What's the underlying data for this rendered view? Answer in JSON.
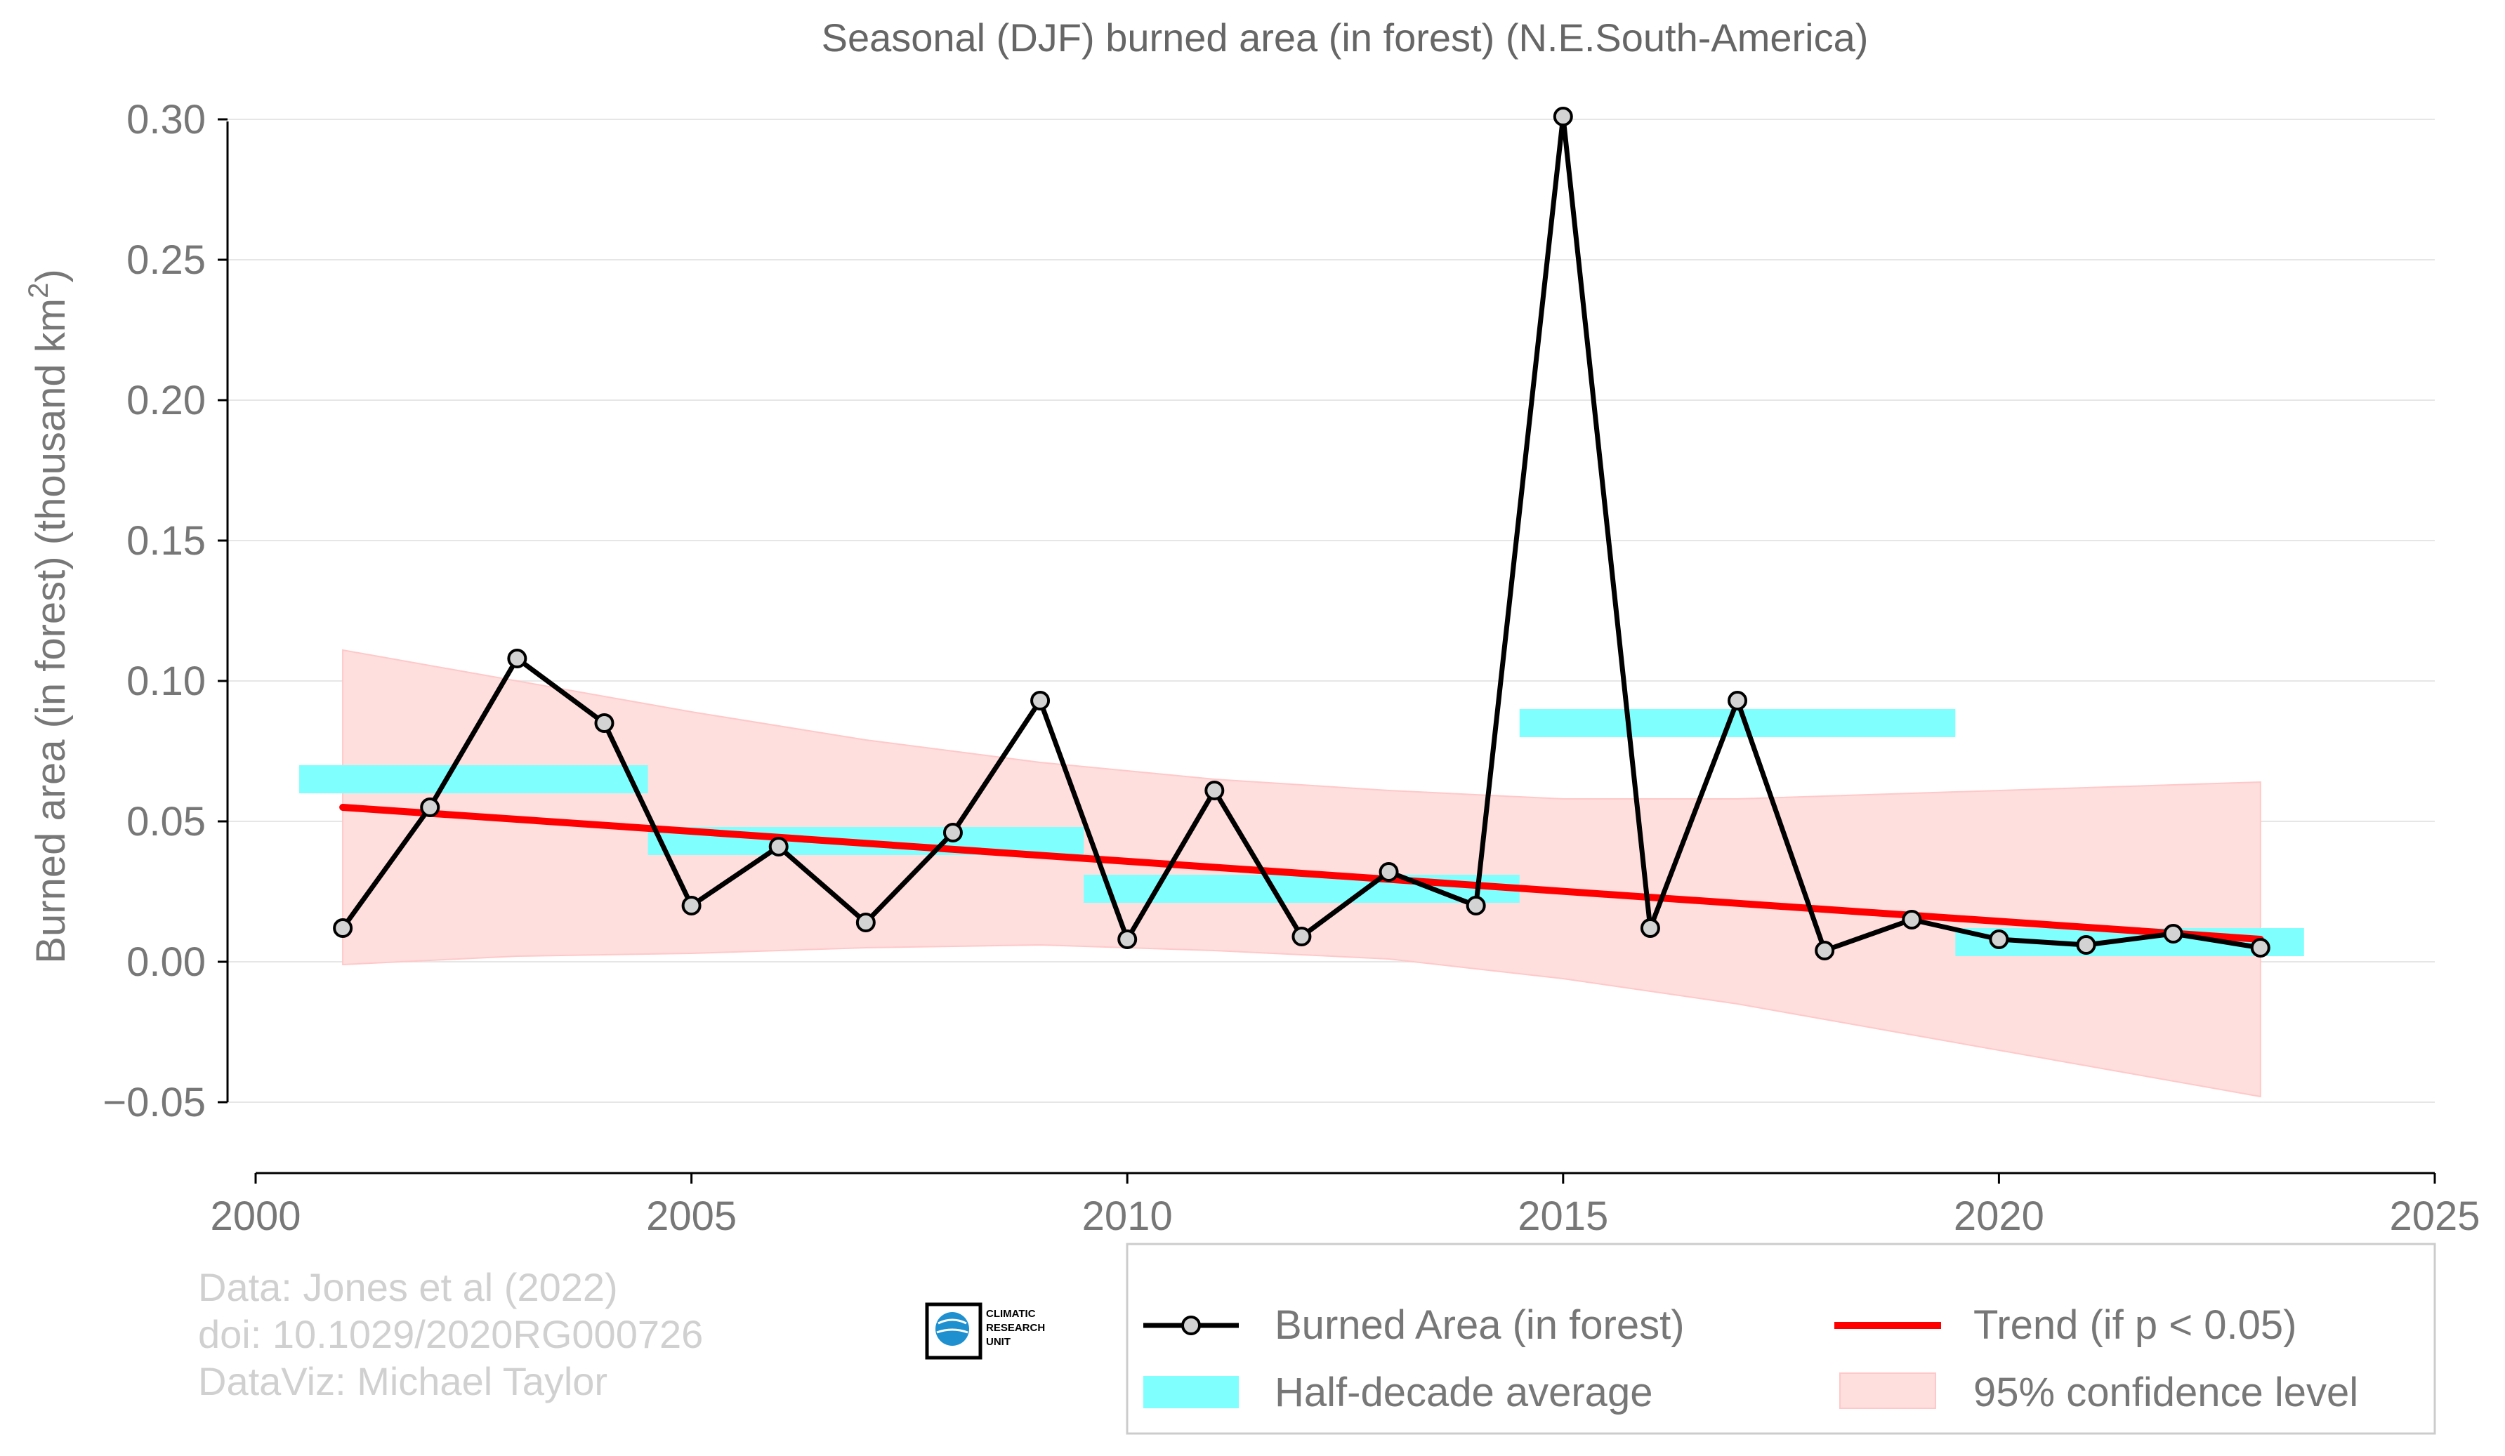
{
  "chart_data": {
    "type": "line",
    "title": "Seasonal (DJF) burned area (in forest) (N.E.South-America)",
    "ylabel_main": "Burned area (in forest) (thousand km",
    "ylabel_sup": "2",
    "ylabel_close": ")",
    "xlabel": "",
    "xlim": [
      2000,
      2025
    ],
    "ylim": [
      -0.075,
      0.3
    ],
    "x_ticks": [
      2000,
      2005,
      2010,
      2015,
      2020,
      2025
    ],
    "y_ticks": [
      -0.05,
      0.0,
      0.05,
      0.1,
      0.15,
      0.2,
      0.25,
      0.3
    ],
    "y_tick_labels": [
      "−0.05",
      "0.00",
      "0.05",
      "0.10",
      "0.15",
      "0.20",
      "0.25",
      "0.30"
    ],
    "grid": "horizontal",
    "legend_position": "bottom-right",
    "series": [
      {
        "name": "Burned Area (in forest)",
        "color": "#000000",
        "marker_fill": "#d3d3d3",
        "x": [
          2001,
          2002,
          2003,
          2004,
          2005,
          2006,
          2007,
          2008,
          2009,
          2010,
          2011,
          2012,
          2013,
          2014,
          2015,
          2016,
          2017,
          2018,
          2019,
          2020,
          2021,
          2022,
          2023
        ],
        "y": [
          0.012,
          0.055,
          0.108,
          0.085,
          0.02,
          0.041,
          0.014,
          0.046,
          0.093,
          0.008,
          0.061,
          0.009,
          0.032,
          0.02,
          0.301,
          0.012,
          0.093,
          0.004,
          0.015,
          0.008,
          0.006,
          0.01,
          0.005
        ]
      }
    ],
    "half_decade_average": {
      "name": "Half-decade average",
      "color": "#80ffff",
      "bars": [
        {
          "x_start": 2000.5,
          "x_end": 2004.5,
          "y_low": 0.06,
          "y_high": 0.07
        },
        {
          "x_start": 2004.5,
          "x_end": 2009.5,
          "y_low": 0.038,
          "y_high": 0.048
        },
        {
          "x_start": 2009.5,
          "x_end": 2014.5,
          "y_low": 0.021,
          "y_high": 0.031
        },
        {
          "x_start": 2014.5,
          "x_end": 2019.5,
          "y_low": 0.08,
          "y_high": 0.09
        },
        {
          "x_start": 2019.5,
          "x_end": 2023.5,
          "y_low": 0.002,
          "y_high": 0.012
        }
      ]
    },
    "trend": {
      "name": "Trend (if p < 0.05)",
      "color": "#ff0000",
      "x": [
        2001,
        2023
      ],
      "y": [
        0.055,
        0.008
      ]
    },
    "confidence_band": {
      "name": "95% confidence level",
      "color": "#ffdede",
      "x": [
        2001,
        2003,
        2005,
        2007,
        2009,
        2011,
        2013,
        2015,
        2017,
        2019,
        2021,
        2023
      ],
      "upper": [
        0.111,
        0.1,
        0.089,
        0.079,
        0.071,
        0.065,
        0.061,
        0.058,
        0.058,
        0.06,
        0.062,
        0.064
      ],
      "lower": [
        -0.001,
        0.002,
        0.003,
        0.005,
        0.006,
        0.004,
        0.001,
        -0.006,
        -0.015,
        -0.026,
        -0.037,
        -0.048
      ]
    }
  },
  "credits": {
    "line1": "Data: Jones et al (2022)",
    "line2": "doi: 10.1029/2020RG000726",
    "line3": "DataViz: Michael Taylor"
  },
  "logo": {
    "line1": "CLIMATIC",
    "line2": "RESEARCH",
    "line3": "UNIT"
  },
  "colors": {
    "text": "#777777",
    "grid": "#e6e6e6",
    "axis": "#000000"
  }
}
